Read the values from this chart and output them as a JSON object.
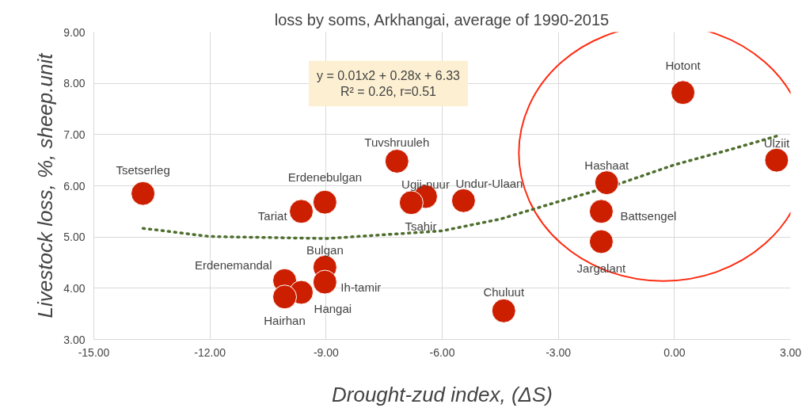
{
  "chart_data": {
    "type": "scatter",
    "title": "loss by soms, Arkhangai, average of 1990-2015",
    "xlabel": "Drought-zud index, (ΔS)",
    "ylabel": "Livestock loss, %, sheep.unit",
    "xlim": [
      -15,
      3
    ],
    "ylim": [
      3,
      9
    ],
    "xticks": [
      {
        "value": -15,
        "label": "-15.00"
      },
      {
        "value": -12,
        "label": "-12.00"
      },
      {
        "value": -9,
        "label": "-9.00"
      },
      {
        "value": -6,
        "label": "-6.00"
      },
      {
        "value": -3,
        "label": "-3.00"
      },
      {
        "value": 0,
        "label": "0.00"
      },
      {
        "value": 3,
        "label": "3.00"
      }
    ],
    "yticks": [
      {
        "value": 3,
        "label": "3.00"
      },
      {
        "value": 4,
        "label": "4.00"
      },
      {
        "value": 5,
        "label": "5.00"
      },
      {
        "value": 6,
        "label": "6.00"
      },
      {
        "value": 7,
        "label": "7.00"
      },
      {
        "value": 8,
        "label": "8.00"
      },
      {
        "value": 9,
        "label": "9.00"
      }
    ],
    "grid": true,
    "marker": "circle",
    "series": [
      {
        "color": "#cc1f00",
        "x": [
          -13.73,
          -9.64,
          -9.03,
          -7.17,
          -6.43,
          -6.8,
          -5.45,
          -1.75,
          -1.89,
          -1.89,
          0.22,
          2.64,
          -9.03,
          -10.07,
          -9.03,
          -9.64,
          -10.07,
          -4.41
        ],
        "values": [
          5.85,
          5.5,
          5.68,
          6.48,
          5.79,
          5.67,
          5.71,
          6.06,
          5.5,
          4.91,
          7.82,
          6.5,
          4.41,
          4.15,
          4.12,
          3.92,
          3.83,
          3.56
        ]
      },
      {
        "type": "line",
        "color": "#4e6e2e",
        "line_style": "dotted",
        "marker": "none",
        "x": [
          -13.73,
          -12,
          -9,
          -6,
          -4.5,
          -3,
          -1.5,
          0,
          1.5,
          2.64
        ],
        "values": [
          5.17,
          5.01,
          4.97,
          5.12,
          5.35,
          5.69,
          6.02,
          6.41,
          6.72,
          6.97
        ]
      }
    ],
    "annotations": [
      {
        "text": "y = 0.01x2 + 0.28x + 6.33\nR² = 0.26, r=0.51"
      },
      {
        "text": "Tsetserleg",
        "x": -13.73,
        "y": 5.85
      },
      {
        "text": "Tariat",
        "x": -9.64,
        "y": 5.5
      },
      {
        "text": "Erdenebulgan",
        "x": -9.03,
        "y": 5.68
      },
      {
        "text": "Tuvshruuleh",
        "x": -7.17,
        "y": 6.48
      },
      {
        "text": "Ugii-nuur",
        "x": -6.43,
        "y": 5.79
      },
      {
        "text": "Tsahir",
        "x": -6.8,
        "y": 5.67
      },
      {
        "text": "Undur-Ulaan",
        "x": -5.45,
        "y": 5.71
      },
      {
        "text": "Hashaat",
        "x": -1.75,
        "y": 6.06
      },
      {
        "text": "Battsengel",
        "x": -1.89,
        "y": 5.5
      },
      {
        "text": "Jargalant",
        "x": -1.89,
        "y": 4.91
      },
      {
        "text": "Hotont",
        "x": 0.22,
        "y": 7.82
      },
      {
        "text": "Ulziit",
        "x": 2.64,
        "y": 6.5
      },
      {
        "text": "Bulgan",
        "x": -9.03,
        "y": 4.41
      },
      {
        "text": "Erdenemandal",
        "x": -10.07,
        "y": 4.15
      },
      {
        "text": "Ih-tamir",
        "x": -9.03,
        "y": 4.12
      },
      {
        "text": "Hangai",
        "x": -9.64,
        "y": 3.92
      },
      {
        "text": "Hairhan",
        "x": -10.07,
        "y": 3.83
      },
      {
        "text": "Chuluut",
        "x": -4.41,
        "y": 3.56
      }
    ]
  }
}
